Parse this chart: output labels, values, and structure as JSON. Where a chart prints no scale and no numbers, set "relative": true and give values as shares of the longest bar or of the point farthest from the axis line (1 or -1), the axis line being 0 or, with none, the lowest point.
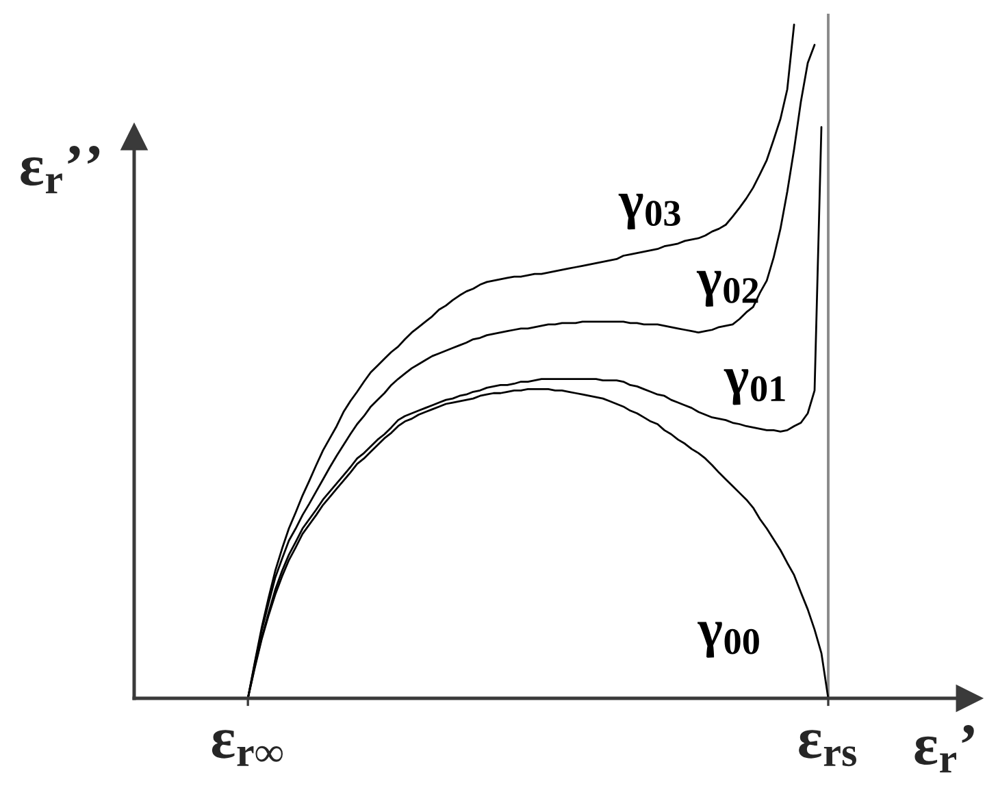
{
  "chart_data": {
    "type": "line",
    "relative": true,
    "xlabel": "ε$_{r}$’",
    "ylabel": "ε$_{r}$’’",
    "categories": [
      "ε$_{r∞}$",
      null,
      null,
      null,
      null,
      null,
      null,
      null,
      null,
      null,
      null,
      null,
      null,
      null,
      null,
      null,
      null,
      null,
      null,
      null,
      null,
      null,
      null,
      null,
      null,
      null,
      null,
      null,
      null,
      null,
      null,
      null,
      null,
      null,
      null,
      null,
      null,
      null,
      null,
      null,
      null,
      null,
      null,
      null,
      null,
      null,
      null,
      null,
      null,
      null,
      null,
      null,
      null,
      null,
      null,
      null,
      null,
      null,
      null,
      null,
      null,
      null,
      null,
      null,
      null,
      null,
      null,
      null,
      null,
      null,
      null,
      null,
      null,
      null,
      null,
      null,
      null,
      null,
      null,
      null,
      null,
      null,
      null,
      null,
      null,
      "ε$_{rs}$"
    ],
    "ref_lines": [
      {
        "axis": "x",
        "value": "ε$_{rs}$",
        "color": "#8a8a8a"
      }
    ],
    "line_style": "solid",
    "series": [
      {
        "name": "γ$_{00}$",
        "color": "#000000",
        "values": [
          0,
          0.045,
          0.087,
          0.122,
          0.154,
          0.181,
          0.205,
          0.224,
          0.244,
          0.258,
          0.272,
          0.287,
          0.299,
          0.311,
          0.323,
          0.335,
          0.348,
          0.356,
          0.366,
          0.376,
          0.386,
          0.394,
          0.404,
          0.411,
          0.415,
          0.421,
          0.425,
          0.429,
          0.433,
          0.437,
          0.439,
          0.441,
          0.443,
          0.445,
          0.449,
          0.451,
          0.453,
          0.453,
          0.455,
          0.457,
          0.457,
          0.459,
          0.459,
          0.459,
          0.459,
          0.457,
          0.457,
          0.455,
          0.453,
          0.451,
          0.449,
          0.447,
          0.445,
          0.441,
          0.437,
          0.433,
          0.427,
          0.423,
          0.417,
          0.411,
          0.407,
          0.398,
          0.392,
          0.384,
          0.378,
          0.37,
          0.364,
          0.356,
          0.346,
          0.335,
          0.325,
          0.315,
          0.305,
          0.295,
          0.283,
          0.266,
          0.252,
          0.236,
          0.22,
          0.201,
          0.183,
          0.157,
          0.132,
          0.102,
          0.067,
          0
        ]
      },
      {
        "name": "γ$_{01}$",
        "color": "#000000",
        "values": [
          0,
          0.047,
          0.089,
          0.126,
          0.161,
          0.189,
          0.213,
          0.232,
          0.252,
          0.266,
          0.28,
          0.295,
          0.307,
          0.319,
          0.331,
          0.343,
          0.356,
          0.364,
          0.374,
          0.384,
          0.392,
          0.402,
          0.413,
          0.419,
          0.423,
          0.427,
          0.431,
          0.435,
          0.439,
          0.443,
          0.445,
          0.449,
          0.451,
          0.455,
          0.457,
          0.461,
          0.463,
          0.465,
          0.465,
          0.467,
          0.47,
          0.47,
          0.472,
          0.474,
          0.474,
          0.474,
          0.474,
          0.474,
          0.474,
          0.474,
          0.474,
          0.474,
          0.472,
          0.472,
          0.472,
          0.47,
          0.465,
          0.463,
          0.459,
          0.455,
          0.451,
          0.449,
          0.443,
          0.439,
          0.435,
          0.431,
          0.425,
          0.421,
          0.417,
          0.415,
          0.413,
          0.409,
          0.407,
          0.404,
          0.402,
          0.4,
          0.398,
          0.398,
          0.396,
          0.398,
          0.404,
          0.409,
          0.423,
          0.457,
          0.848,
          null
        ]
      },
      {
        "name": "γ$_{02}$",
        "color": "#000000",
        "values": [
          0,
          0.051,
          0.1,
          0.14,
          0.179,
          0.207,
          0.234,
          0.252,
          0.272,
          0.289,
          0.307,
          0.325,
          0.343,
          0.36,
          0.376,
          0.392,
          0.407,
          0.419,
          0.433,
          0.443,
          0.453,
          0.465,
          0.474,
          0.482,
          0.49,
          0.496,
          0.502,
          0.508,
          0.512,
          0.516,
          0.52,
          0.524,
          0.528,
          0.533,
          0.535,
          0.539,
          0.541,
          0.543,
          0.545,
          0.547,
          0.549,
          0.549,
          0.551,
          0.553,
          0.555,
          0.555,
          0.557,
          0.557,
          0.557,
          0.559,
          0.559,
          0.559,
          0.559,
          0.559,
          0.559,
          0.559,
          0.557,
          0.557,
          0.555,
          0.555,
          0.555,
          0.553,
          0.551,
          0.549,
          0.547,
          0.545,
          0.543,
          0.545,
          0.547,
          0.551,
          0.553,
          0.555,
          0.563,
          0.573,
          0.581,
          0.602,
          0.62,
          0.654,
          0.697,
          0.752,
          0.815,
          0.886,
          0.943,
          0.97,
          null,
          null
        ]
      },
      {
        "name": "γ$_{03}$",
        "color": "#000000",
        "values": [
          0,
          0.053,
          0.104,
          0.148,
          0.189,
          0.222,
          0.252,
          0.276,
          0.301,
          0.323,
          0.346,
          0.368,
          0.386,
          0.404,
          0.425,
          0.441,
          0.455,
          0.47,
          0.484,
          0.494,
          0.504,
          0.514,
          0.522,
          0.533,
          0.543,
          0.551,
          0.559,
          0.567,
          0.577,
          0.583,
          0.591,
          0.598,
          0.604,
          0.608,
          0.614,
          0.618,
          0.62,
          0.622,
          0.624,
          0.626,
          0.626,
          0.628,
          0.63,
          0.63,
          0.632,
          0.634,
          0.636,
          0.638,
          0.64,
          0.642,
          0.644,
          0.646,
          0.648,
          0.65,
          0.652,
          0.657,
          0.659,
          0.661,
          0.663,
          0.665,
          0.667,
          0.671,
          0.673,
          0.675,
          0.679,
          0.681,
          0.683,
          0.687,
          0.693,
          0.697,
          0.703,
          0.715,
          0.728,
          0.742,
          0.758,
          0.778,
          0.799,
          0.829,
          0.86,
          0.904,
          1.0,
          null,
          null,
          null,
          null,
          null
        ]
      }
    ]
  }
}
